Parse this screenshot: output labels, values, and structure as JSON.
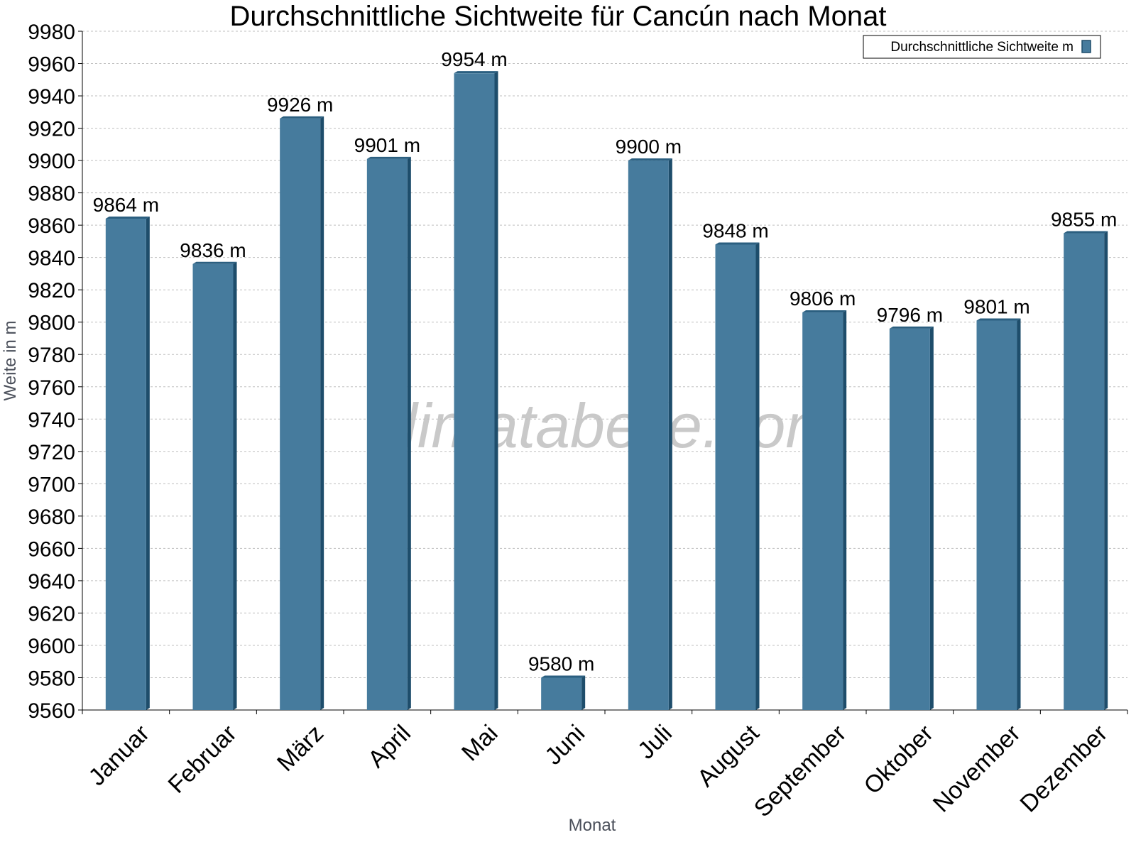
{
  "chart_data": {
    "type": "bar",
    "title": "Durchschnittliche Sichtweite für Cancún nach Monat",
    "xlabel": "Monat",
    "ylabel": "Weite in m",
    "categories": [
      "Januar",
      "Februar",
      "März",
      "April",
      "Mai",
      "Juni",
      "Juli",
      "August",
      "September",
      "Oktober",
      "November",
      "Dezember"
    ],
    "series": [
      {
        "name": "Durchschnittliche Sichtweite m",
        "values": [
          9864,
          9836,
          9926,
          9901,
          9954,
          9580,
          9900,
          9848,
          9806,
          9796,
          9801,
          9855
        ],
        "data_labels": [
          "9864 m",
          "9836 m",
          "9926 m",
          "9901 m",
          "9954 m",
          "9580 m",
          "9900 m",
          "9848 m",
          "9806 m",
          "9796 m",
          "9801 m",
          "9855 m"
        ],
        "color": "#467b9d"
      }
    ],
    "ylim": [
      9560,
      9980
    ],
    "yticks": [
      "9560",
      "9580",
      "9600",
      "9620",
      "9640",
      "9660",
      "9680",
      "9700",
      "9720",
      "9740",
      "9760",
      "9780",
      "9800",
      "9820",
      "9840",
      "9860",
      "9880",
      "9900",
      "9920",
      "9940",
      "9960",
      "9980"
    ],
    "grid": true,
    "legend": "top-right",
    "watermark": "klimatabelle.com",
    "colors": {
      "bar": "#467b9d",
      "bar_dark": "#1e4d6b",
      "bar_top": "#2b5f80",
      "grid": "#bfbfbf"
    }
  }
}
